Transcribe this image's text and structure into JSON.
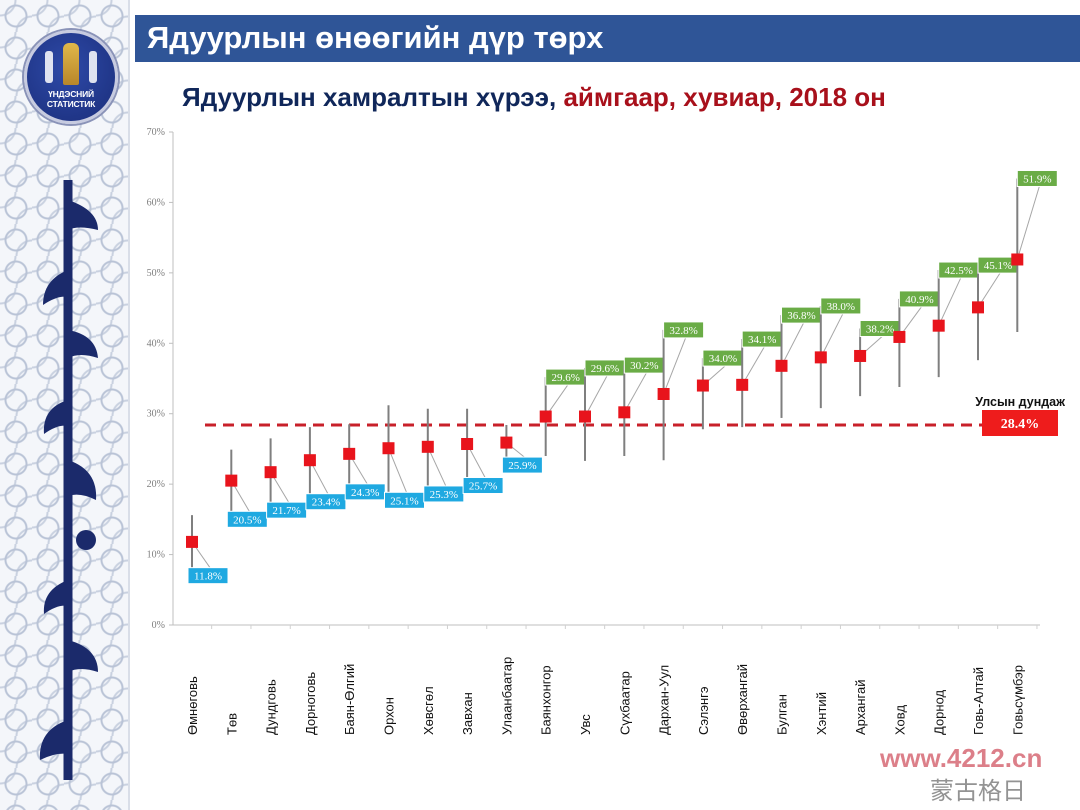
{
  "header": {
    "title": "Ядуурлын өнөөгийн дүр төрх"
  },
  "subtitle": {
    "part1": "Ядуурлын хамралтын хүрээ,",
    "part2": " аймгаар, хувиар, 2018 он"
  },
  "logo": {
    "line1": "ҮНДЭСНИЙ",
    "line2": "СТАТИСТИК"
  },
  "watermark": {
    "site": "www.4212.cn",
    "wechat": "蒙古格日"
  },
  "colors": {
    "header": "#2f5597",
    "marker": "#e8141c",
    "below_label": "#1fa9e1",
    "above_label": "#6aac46",
    "avg_line": "#c8202a"
  },
  "chart_data": {
    "type": "scatter",
    "title": "Ядуурлын хамралтын хүрээ, аймгаар, хувиар, 2018 он",
    "xlabel": "",
    "ylabel": "",
    "ylim": [
      0,
      70
    ],
    "yticks": [
      "0%",
      "10%",
      "20%",
      "30%",
      "40%",
      "50%",
      "60%",
      "70%"
    ],
    "grid": false,
    "categories": [
      "Өмнөговь",
      "Төв",
      "Дундговь",
      "Дорноговь",
      "Баян-Өлгий",
      "Орхон",
      "Хөвсгөл",
      "Завхан",
      "Улаанбаатар",
      "Баянхонгор",
      "Увс",
      "Сүхбаатар",
      "Дархан-Уул",
      "Сэлэнгэ",
      "Өвөрхангай",
      "Булган",
      "Хэнтий",
      "Архангай",
      "Ховд",
      "Дорнод",
      "Говь-Алтай",
      "Говьсүмбэр"
    ],
    "values": [
      11.8,
      20.5,
      21.7,
      23.4,
      24.3,
      25.1,
      25.3,
      25.7,
      25.9,
      29.6,
      29.6,
      30.2,
      32.8,
      34.0,
      34.1,
      36.8,
      38.0,
      38.2,
      40.9,
      42.5,
      45.1,
      51.9
    ],
    "labels": [
      "11.8%",
      "20.5%",
      "21.7%",
      "23.4%",
      "24.3%",
      "25.1%",
      "25.3%",
      "25.7%",
      "25.9%",
      "29.6%",
      "29.6%",
      "30.2%",
      "32.8%",
      "34.0%",
      "34.1%",
      "36.8%",
      "38.0%",
      "38.2%",
      "40.9%",
      "42.5%",
      "45.1%",
      "51.9%"
    ],
    "ci_low": [
      8.0,
      16.0,
      17.3,
      18.5,
      19.9,
      18.7,
      19.6,
      20.8,
      23.7,
      24.0,
      23.3,
      24.0,
      23.4,
      27.8,
      28.1,
      29.4,
      30.8,
      32.5,
      33.8,
      35.2,
      37.6,
      41.6
    ],
    "ci_high": [
      15.6,
      24.9,
      26.5,
      28.1,
      28.5,
      31.2,
      30.7,
      30.7,
      28.4,
      35.2,
      36.5,
      36.9,
      41.9,
      37.9,
      40.6,
      44.0,
      45.3,
      42.1,
      46.3,
      50.4,
      51.1,
      63.4
    ],
    "national_average": {
      "label": "Улсын дундаж",
      "value": 28.4,
      "value_label": "28.4%"
    }
  }
}
